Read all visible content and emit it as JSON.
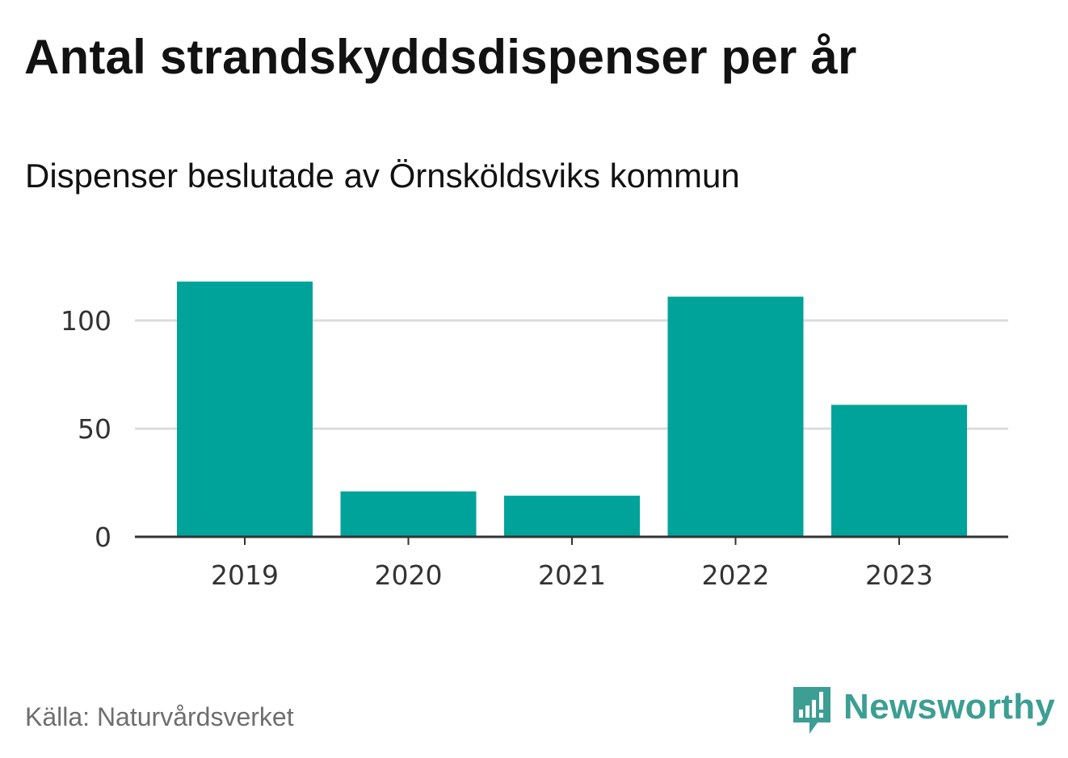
{
  "header": {
    "title": "Antal strandskyddsdispenser per år",
    "subtitle": "Dispenser beslutade av Örnsköldsviks kommun"
  },
  "footer": {
    "source": "Källa: Naturvårdsverket",
    "brand": "Newsworthy",
    "brand_icon": "newsworthy-logo-icon"
  },
  "colors": {
    "bar": "#00a39a",
    "gridline": "#dcdcdc",
    "axis": "#333333",
    "brand": "#3d9e93"
  },
  "chart_data": {
    "type": "bar",
    "title": "Antal strandskyddsdispenser per år",
    "subtitle": "Dispenser beslutade av Örnsköldsviks kommun",
    "categories": [
      "2019",
      "2020",
      "2021",
      "2022",
      "2023"
    ],
    "values": [
      118,
      21,
      19,
      111,
      61
    ],
    "xlabel": "",
    "ylabel": "",
    "ylim": [
      0,
      125
    ],
    "yticks": [
      0,
      50,
      100
    ],
    "ytick_labels": [
      "0",
      "50",
      "100"
    ],
    "grid": true,
    "legend": "none"
  }
}
